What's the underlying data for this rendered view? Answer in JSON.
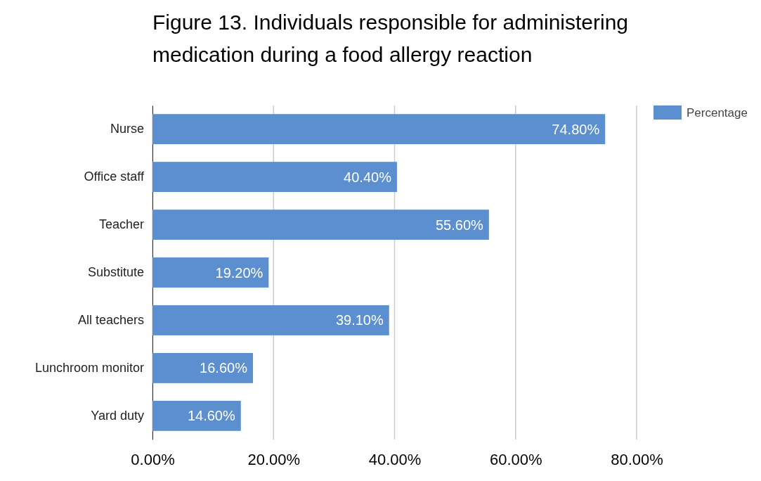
{
  "chart_data": {
    "type": "bar",
    "orientation": "horizontal",
    "title": "Figure 13. Individuals responsible for administering medication during a food allergy reaction",
    "categories": [
      "Nurse",
      "Office staff",
      "Teacher",
      "Substitute",
      "All teachers",
      "Lunchroom monitor",
      "Yard duty"
    ],
    "series": [
      {
        "name": "Percentage",
        "color": "#5b8fcf",
        "values": [
          74.8,
          40.4,
          55.6,
          19.2,
          39.1,
          16.6,
          14.6
        ],
        "value_labels": [
          "74.80%",
          "40.40%",
          "55.60%",
          "19.20%",
          "39.10%",
          "16.60%",
          "14.60%"
        ]
      }
    ],
    "xlim": [
      0,
      80
    ],
    "xticks": [
      {
        "value": 0,
        "label": "0.00%"
      },
      {
        "value": 20,
        "label": "20.00%"
      },
      {
        "value": 40,
        "label": "40.00%"
      },
      {
        "value": 60,
        "label": "60.00%"
      },
      {
        "value": 80,
        "label": "80.00%"
      }
    ],
    "grid": "x",
    "legend": "top right"
  }
}
